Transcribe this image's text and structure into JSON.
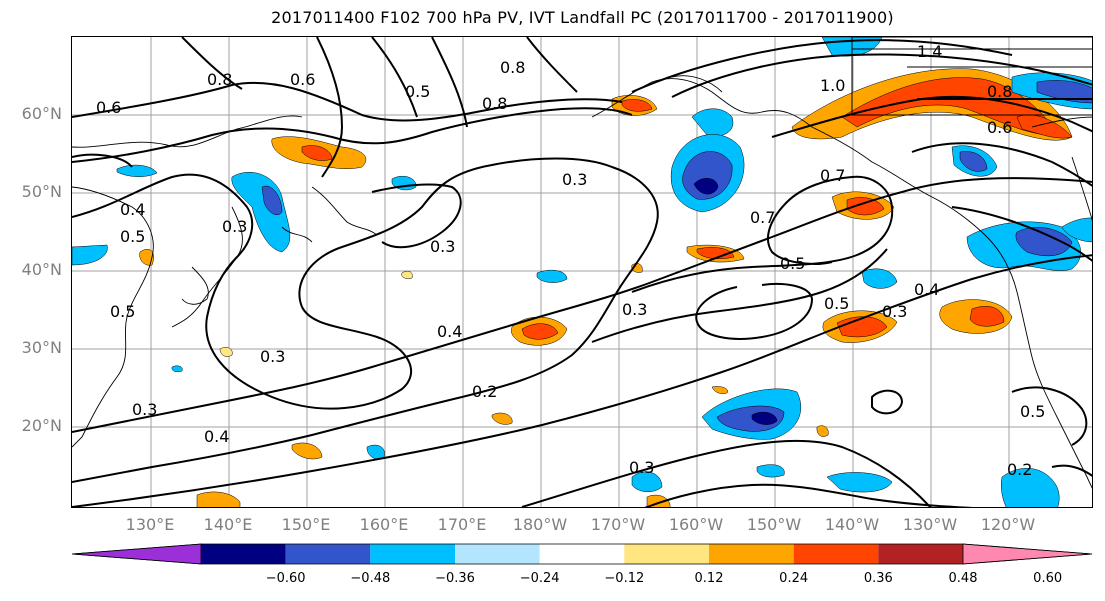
{
  "title": "2017011400 F102 700 hPa PV, IVT Landfall PC (2017011700 - 2017011900)",
  "lat_labels": [
    "60°N",
    "50°N",
    "40°N",
    "30°N",
    "20°N"
  ],
  "lon_labels": [
    "130°E",
    "140°E",
    "150°E",
    "160°E",
    "170°E",
    "180°W",
    "170°W",
    "160°W",
    "150°W",
    "140°W",
    "130°W",
    "120°W"
  ],
  "colorbar": {
    "ticks": [
      "−0.60",
      "−0.48",
      "−0.36",
      "−0.24",
      "−0.12",
      "0.12",
      "0.24",
      "0.36",
      "0.48",
      "0.60"
    ],
    "colors": [
      "#9b30d9",
      "#000080",
      "#3355cc",
      "#00bfff",
      "#b3e5ff",
      "#ffffff",
      "#ffe680",
      "#ffa500",
      "#ff4500",
      "#b22222",
      "#ff88b0"
    ]
  },
  "contour_labels": [
    "0.6",
    "0.8",
    "0.6",
    "0.5",
    "0.8",
    "0.8",
    "1.4",
    "1.0",
    "0.8",
    "0.6",
    "0.4",
    "0.5",
    "0.3",
    "0.3",
    "0.7",
    "0.7",
    "0.5",
    "0.5",
    "0.3",
    "0.4",
    "0.4",
    "0.3",
    "0.3",
    "0.2",
    "0.3",
    "0.4",
    "0.3",
    "0.5",
    "0.2",
    "0.3",
    "0.5"
  ]
}
